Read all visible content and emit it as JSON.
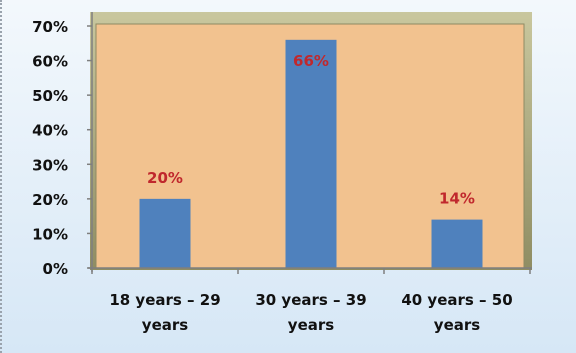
{
  "chart_data": {
    "type": "bar",
    "categories": [
      [
        "18 years – 29",
        "years"
      ],
      [
        "30 years – 39",
        "years"
      ],
      [
        "40 years – 50",
        "years"
      ]
    ],
    "values": [
      20,
      66,
      14
    ],
    "data_labels": [
      "20%",
      "66%",
      "14%"
    ],
    "y_ticks": [
      "0%",
      "10%",
      "20%",
      "30%",
      "40%",
      "50%",
      "60%",
      "70%"
    ],
    "ylim": [
      0,
      70
    ],
    "y_step": 10,
    "title": "",
    "xlabel": "",
    "ylabel": "",
    "grid": false,
    "legend": "none",
    "colors": {
      "bar": "#4f81bd",
      "plot_background": "#f2c28f",
      "plot_frame": "#a8a67a",
      "data_label": "#c0282d",
      "axis_text": "#111111"
    }
  }
}
